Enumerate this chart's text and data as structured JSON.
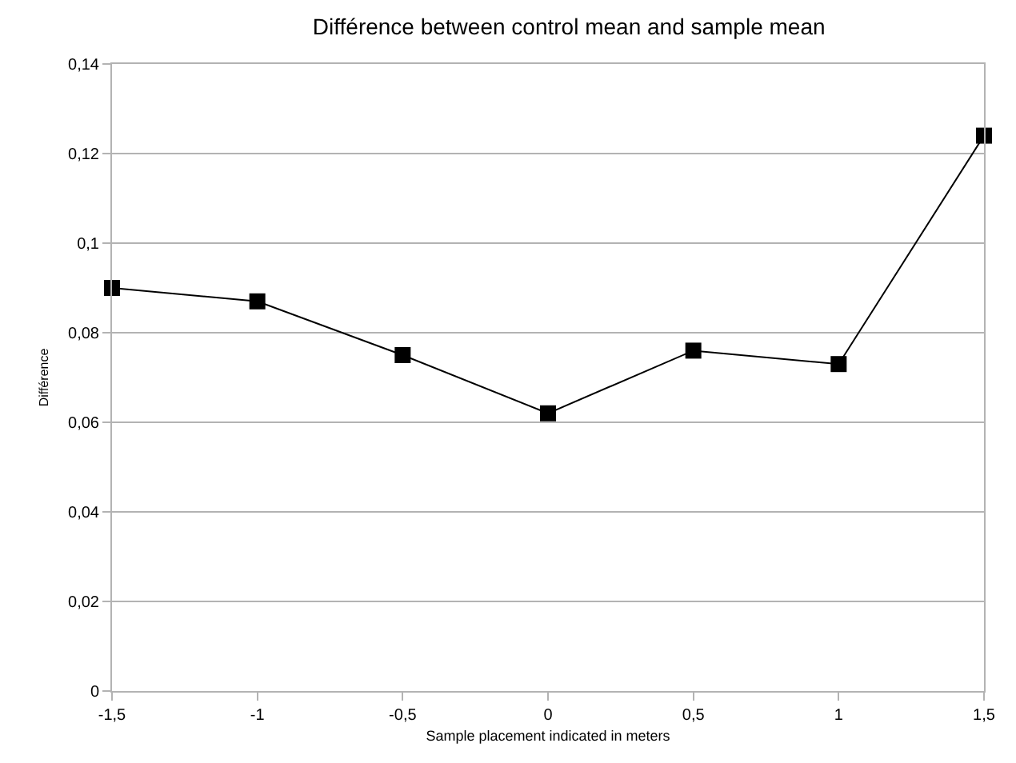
{
  "chart_data": {
    "type": "line",
    "title": "Différence between control mean and sample mean",
    "xlabel": "Sample placement indicated in meters",
    "ylabel": "Différence",
    "x": [
      -1.5,
      -1,
      -0.5,
      0,
      0.5,
      1,
      1.5
    ],
    "series": [
      {
        "color": "#000000",
        "values": [
          0.09,
          0.087,
          0.075,
          0.062,
          0.076,
          0.073,
          0.124
        ]
      }
    ],
    "xlim": [
      -1.5,
      1.5
    ],
    "xticks": [
      {
        "value": -1.5,
        "label": "-1,5"
      },
      {
        "value": -1,
        "label": "-1"
      },
      {
        "value": -0.5,
        "label": "-0,5"
      },
      0,
      {
        "value": 0.5,
        "label": "0,5"
      },
      1,
      {
        "value": 1.5,
        "label": "1,5"
      }
    ],
    "ylim": [
      0,
      0.14
    ],
    "yticks": [
      0,
      {
        "value": 0.02,
        "label": "0,02"
      },
      {
        "value": 0.04,
        "label": "0,04"
      },
      {
        "value": 0.06,
        "label": "0,06"
      },
      {
        "value": 0.08,
        "label": "0,08"
      },
      {
        "value": 0.1,
        "label": "0,1"
      },
      {
        "value": 0.12,
        "label": "0,12"
      },
      {
        "value": 0.14,
        "label": "0,14"
      }
    ],
    "grid": "y",
    "marker": "square",
    "line_style": "solid"
  }
}
